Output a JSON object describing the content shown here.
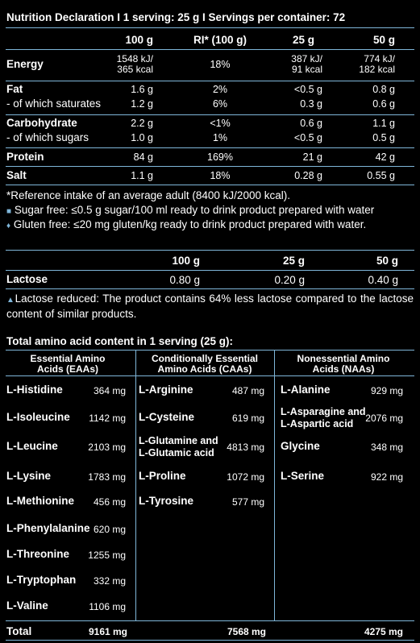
{
  "nutrition": {
    "title": "Nutrition Declaration I 1 serving: 25 g I Servings per container: 72",
    "headers": [
      "100 g",
      "RI* (100 g)",
      "25 g",
      "50 g"
    ],
    "rows": [
      {
        "label": "Energy",
        "v100": "1548 kJ/\n365 kcal",
        "ri": "18%",
        "v25": "387 kJ/\n91 kcal",
        "v50": "774 kJ/\n182 kcal"
      },
      {
        "label": "Fat",
        "v100": "1.6 g",
        "ri": "2%",
        "v25": "<0.5 g",
        "v50": "0.8 g"
      },
      {
        "label": "- of which saturates",
        "v100": "1.2 g",
        "ri": "6%",
        "v25": "0.3 g",
        "v50": "0.6 g"
      },
      {
        "label": "Carbohydrate",
        "v100": "2.2 g",
        "ri": "<1%",
        "v25": "0.6 g",
        "v50": "1.1 g"
      },
      {
        "label": "- of which sugars",
        "v100": "1.0 g",
        "ri": "1%",
        "v25": "<0.5 g",
        "v50": "0.5 g"
      },
      {
        "label": "Protein",
        "v100": "84 g",
        "ri": "169%",
        "v25": "21 g",
        "v50": "42 g"
      },
      {
        "label": "Salt",
        "v100": "1.1 g",
        "ri": "18%",
        "v25": "0.28 g",
        "v50": "0.55 g"
      }
    ],
    "notes": [
      "*Reference intake of an average adult (8400 kJ/2000 kcal).",
      "Sugar free: ≤0.5 g sugar/100 ml ready to drink product prepared with water",
      "Gluten free: ≤20 mg gluten/kg ready to drink product prepared with water."
    ]
  },
  "lactose": {
    "headers": [
      "100 g",
      "25 g",
      "50 g"
    ],
    "label": "Lactose",
    "values": [
      "0.80 g",
      "0.20 g",
      "0.40 g"
    ],
    "note": "Lactose reduced: The product contains 64% less lactose compared to the lactose content of similar products."
  },
  "amino": {
    "title": "Total amino acid content in 1 serving (25 g):",
    "col_headers": [
      "Essential Amino\nAcids (EAAs)",
      "Conditionally Essential\nAmino Acids (CAAs)",
      "Nonessential Amino\nAcids (NAAs)"
    ],
    "eaa": [
      {
        "name": "L-Histidine",
        "value": "364 mg"
      },
      {
        "name": "L-Isoleucine",
        "value": "1142 mg"
      },
      {
        "name": "L-Leucine",
        "value": "2103 mg"
      },
      {
        "name": "L-Lysine",
        "value": "1783 mg"
      },
      {
        "name": "L-Methionine",
        "value": "456 mg"
      },
      {
        "name": "L-Phenylalanine",
        "value": "620 mg"
      },
      {
        "name": "L-Threonine",
        "value": "1255 mg"
      },
      {
        "name": "L-Tryptophan",
        "value": "332 mg"
      },
      {
        "name": "L-Valine",
        "value": "1106 mg"
      }
    ],
    "caa": [
      {
        "name": "L-Arginine",
        "value": "487 mg"
      },
      {
        "name": "L-Cysteine",
        "value": "619 mg"
      },
      {
        "name": "L-Glutamine and\nL-Glutamic acid",
        "value": "4813 mg"
      },
      {
        "name": "L-Proline",
        "value": "1072 mg"
      },
      {
        "name": "L-Tyrosine",
        "value": "577 mg"
      }
    ],
    "naa": [
      {
        "name": "L-Alanine",
        "value": "929 mg"
      },
      {
        "name": "L-Asparagine and\nL-Aspartic acid",
        "value": "2076 mg"
      },
      {
        "name": "Glycine",
        "value": "348 mg"
      },
      {
        "name": "L-Serine",
        "value": "922 mg"
      }
    ],
    "total_label": "Total",
    "totals": [
      "9161 mg",
      "7568 mg",
      "4275 mg"
    ]
  },
  "colors": {
    "line": "#7fb6d9",
    "background": "#000000",
    "text": "#ffffff"
  }
}
